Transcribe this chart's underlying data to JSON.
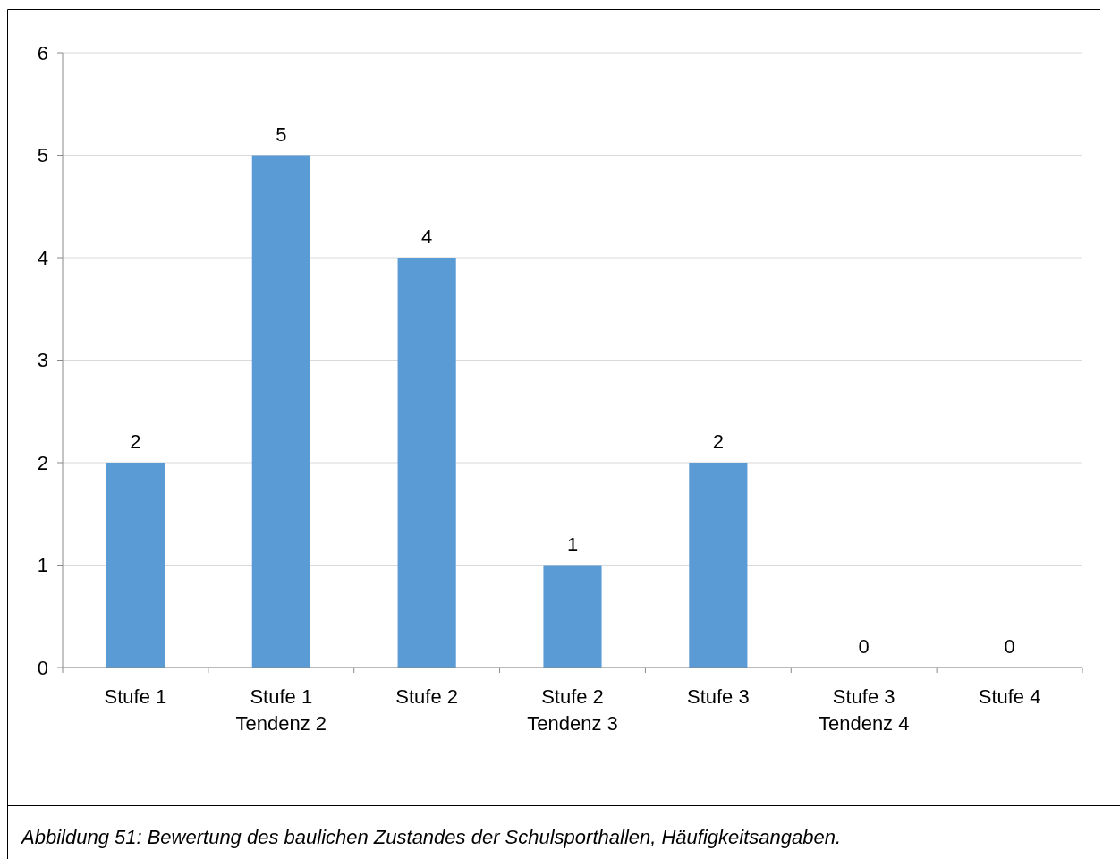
{
  "chart_data": {
    "type": "bar",
    "categories": [
      "Stufe 1",
      "Stufe 1\nTendenz 2",
      "Stufe 2",
      "Stufe 2\nTendenz 3",
      "Stufe 3",
      "Stufe 3\nTendenz 4",
      "Stufe 4"
    ],
    "values": [
      2,
      5,
      4,
      1,
      2,
      0,
      0
    ],
    "color": "#5b9bd5",
    "ylim": [
      0,
      6
    ],
    "yticks": [
      0,
      1,
      2,
      3,
      4,
      5,
      6
    ],
    "grid": "y",
    "data_labels": true,
    "annotations": [
      "Abbildung 51: Bewertung des baulichen Zustandes der Schulsporthallen, Häufigkeitsangaben."
    ]
  }
}
